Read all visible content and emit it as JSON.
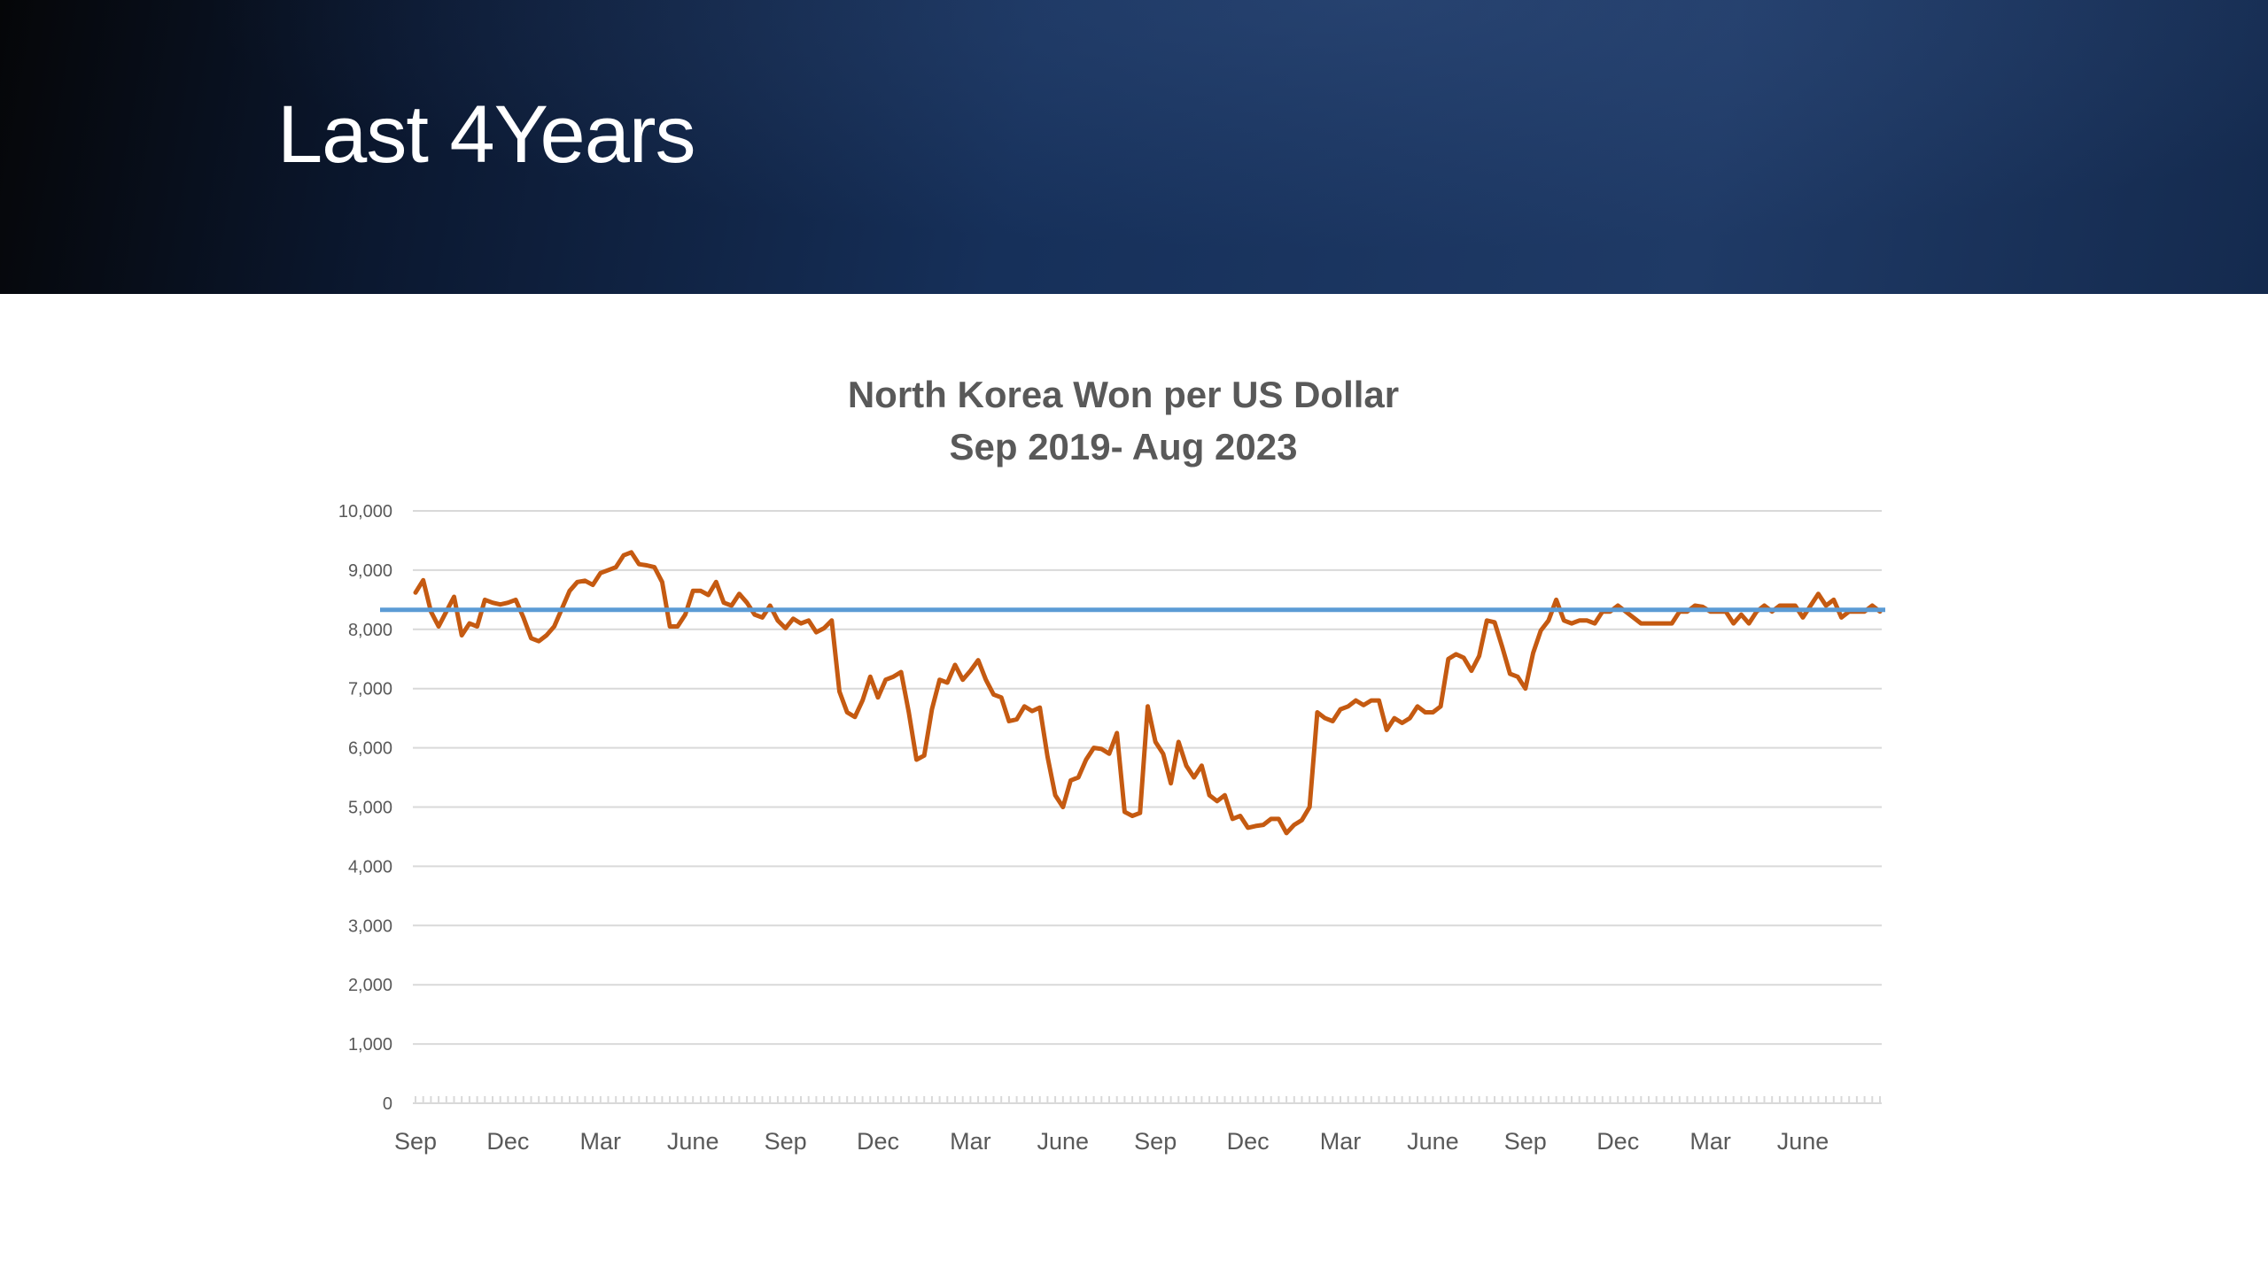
{
  "slide": {
    "title": "Last 4Years"
  },
  "colors": {
    "header_dark": "#050608",
    "header_blue": "#1f3a66",
    "series_line": "#c55a11",
    "reference_line": "#5b9bd5",
    "gridline": "#d9d9d9",
    "text": "#595959"
  },
  "chart_data": {
    "type": "line",
    "title": [
      "North Korea Won per US Dollar",
      "Sep 2019- Aug 2023"
    ],
    "xlabel": "",
    "ylabel": "",
    "ylim": [
      0,
      10000
    ],
    "y_ticks": [
      "0",
      "1,000",
      "2,000",
      "3,000",
      "4,000",
      "5,000",
      "6,000",
      "7,000",
      "8,000",
      "9,000",
      "10,000"
    ],
    "x_range": [
      0,
      48
    ],
    "x_tick_labels": [
      {
        "label": "Sep",
        "month_index": 0
      },
      {
        "label": "Dec",
        "month_index": 3
      },
      {
        "label": "Mar",
        "month_index": 6
      },
      {
        "label": "June",
        "month_index": 9
      },
      {
        "label": "Sep",
        "month_index": 12
      },
      {
        "label": "Dec",
        "month_index": 15
      },
      {
        "label": "Mar",
        "month_index": 18
      },
      {
        "label": "June",
        "month_index": 21
      },
      {
        "label": "Sep",
        "month_index": 24
      },
      {
        "label": "Dec",
        "month_index": 27
      },
      {
        "label": "Mar",
        "month_index": 30
      },
      {
        "label": "June",
        "month_index": 33
      },
      {
        "label": "Sep",
        "month_index": 36
      },
      {
        "label": "Dec",
        "month_index": 39
      },
      {
        "label": "Mar",
        "month_index": 42
      },
      {
        "label": "June",
        "month_index": 45
      }
    ],
    "grid": true,
    "legend": "none",
    "reference_line": {
      "y": 8330
    },
    "series": [
      {
        "points": [
          [
            0.0,
            8620
          ],
          [
            0.25,
            8830
          ],
          [
            0.5,
            8300
          ],
          [
            0.75,
            8050
          ],
          [
            1.0,
            8300
          ],
          [
            1.25,
            8550
          ],
          [
            1.5,
            7900
          ],
          [
            1.75,
            8100
          ],
          [
            2.0,
            8050
          ],
          [
            2.25,
            8500
          ],
          [
            2.5,
            8450
          ],
          [
            2.75,
            8420
          ],
          [
            3.0,
            8450
          ],
          [
            3.25,
            8500
          ],
          [
            3.5,
            8200
          ],
          [
            3.75,
            7850
          ],
          [
            4.0,
            7800
          ],
          [
            4.25,
            7900
          ],
          [
            4.5,
            8050
          ],
          [
            4.75,
            8350
          ],
          [
            5.0,
            8650
          ],
          [
            5.25,
            8800
          ],
          [
            5.5,
            8820
          ],
          [
            5.75,
            8750
          ],
          [
            6.0,
            8950
          ],
          [
            6.25,
            9000
          ],
          [
            6.5,
            9050
          ],
          [
            6.75,
            9250
          ],
          [
            7.0,
            9300
          ],
          [
            7.25,
            9100
          ],
          [
            7.5,
            9080
          ],
          [
            7.75,
            9050
          ],
          [
            8.0,
            8800
          ],
          [
            8.25,
            8050
          ],
          [
            8.5,
            8050
          ],
          [
            8.75,
            8250
          ],
          [
            9.0,
            8650
          ],
          [
            9.25,
            8650
          ],
          [
            9.5,
            8580
          ],
          [
            9.75,
            8800
          ],
          [
            10.0,
            8450
          ],
          [
            10.25,
            8400
          ],
          [
            10.5,
            8600
          ],
          [
            10.75,
            8450
          ],
          [
            11.0,
            8250
          ],
          [
            11.25,
            8200
          ],
          [
            11.5,
            8400
          ],
          [
            11.75,
            8150
          ],
          [
            12.0,
            8020
          ],
          [
            12.25,
            8180
          ],
          [
            12.5,
            8100
          ],
          [
            12.75,
            8150
          ],
          [
            13.0,
            7950
          ],
          [
            13.25,
            8020
          ],
          [
            13.5,
            8150
          ],
          [
            13.75,
            6950
          ],
          [
            14.0,
            6600
          ],
          [
            14.25,
            6520
          ],
          [
            14.5,
            6800
          ],
          [
            14.75,
            7200
          ],
          [
            15.0,
            6850
          ],
          [
            15.25,
            7150
          ],
          [
            15.5,
            7200
          ],
          [
            15.75,
            7280
          ],
          [
            16.0,
            6600
          ],
          [
            16.25,
            5800
          ],
          [
            16.5,
            5870
          ],
          [
            16.75,
            6650
          ],
          [
            17.0,
            7150
          ],
          [
            17.25,
            7100
          ],
          [
            17.5,
            7400
          ],
          [
            17.75,
            7150
          ],
          [
            18.0,
            7300
          ],
          [
            18.25,
            7480
          ],
          [
            18.5,
            7150
          ],
          [
            18.75,
            6900
          ],
          [
            19.0,
            6850
          ],
          [
            19.25,
            6450
          ],
          [
            19.5,
            6480
          ],
          [
            19.75,
            6700
          ],
          [
            20.0,
            6620
          ],
          [
            20.25,
            6680
          ],
          [
            20.5,
            5850
          ],
          [
            20.75,
            5200
          ],
          [
            21.0,
            5000
          ],
          [
            21.25,
            5450
          ],
          [
            21.5,
            5500
          ],
          [
            21.75,
            5800
          ],
          [
            22.0,
            6000
          ],
          [
            22.25,
            5980
          ],
          [
            22.5,
            5900
          ],
          [
            22.75,
            6250
          ],
          [
            23.0,
            4920
          ],
          [
            23.25,
            4850
          ],
          [
            23.5,
            4900
          ],
          [
            23.75,
            6700
          ],
          [
            24.0,
            6100
          ],
          [
            24.25,
            5900
          ],
          [
            24.5,
            5400
          ],
          [
            24.75,
            6100
          ],
          [
            25.0,
            5700
          ],
          [
            25.25,
            5500
          ],
          [
            25.5,
            5700
          ],
          [
            25.75,
            5200
          ],
          [
            26.0,
            5100
          ],
          [
            26.25,
            5200
          ],
          [
            26.5,
            4800
          ],
          [
            26.75,
            4850
          ],
          [
            27.0,
            4650
          ],
          [
            27.25,
            4680
          ],
          [
            27.5,
            4700
          ],
          [
            27.75,
            4800
          ],
          [
            28.0,
            4800
          ],
          [
            28.25,
            4560
          ],
          [
            28.5,
            4700
          ],
          [
            28.75,
            4780
          ],
          [
            29.0,
            5000
          ],
          [
            29.25,
            6600
          ],
          [
            29.5,
            6500
          ],
          [
            29.75,
            6450
          ],
          [
            30.0,
            6650
          ],
          [
            30.25,
            6700
          ],
          [
            30.5,
            6800
          ],
          [
            30.75,
            6720
          ],
          [
            31.0,
            6800
          ],
          [
            31.25,
            6800
          ],
          [
            31.5,
            6300
          ],
          [
            31.75,
            6500
          ],
          [
            32.0,
            6420
          ],
          [
            32.25,
            6500
          ],
          [
            32.5,
            6700
          ],
          [
            32.75,
            6600
          ],
          [
            33.0,
            6600
          ],
          [
            33.25,
            6700
          ],
          [
            33.5,
            7500
          ],
          [
            33.75,
            7580
          ],
          [
            34.0,
            7520
          ],
          [
            34.25,
            7300
          ],
          [
            34.5,
            7550
          ],
          [
            34.75,
            8150
          ],
          [
            35.0,
            8120
          ],
          [
            35.25,
            7700
          ],
          [
            35.5,
            7250
          ],
          [
            35.75,
            7200
          ],
          [
            36.0,
            7000
          ],
          [
            36.25,
            7600
          ],
          [
            36.5,
            7980
          ],
          [
            36.75,
            8150
          ],
          [
            37.0,
            8500
          ],
          [
            37.25,
            8150
          ],
          [
            37.5,
            8100
          ],
          [
            37.75,
            8150
          ],
          [
            38.0,
            8150
          ],
          [
            38.25,
            8100
          ],
          [
            38.5,
            8300
          ],
          [
            38.75,
            8300
          ],
          [
            39.0,
            8400
          ],
          [
            39.25,
            8300
          ],
          [
            39.5,
            8200
          ],
          [
            39.75,
            8100
          ],
          [
            40.0,
            8100
          ],
          [
            40.25,
            8100
          ],
          [
            40.5,
            8100
          ],
          [
            40.75,
            8100
          ],
          [
            41.0,
            8300
          ],
          [
            41.25,
            8300
          ],
          [
            41.5,
            8400
          ],
          [
            41.75,
            8380
          ],
          [
            42.0,
            8300
          ],
          [
            42.25,
            8300
          ],
          [
            42.5,
            8300
          ],
          [
            42.75,
            8100
          ],
          [
            43.0,
            8250
          ],
          [
            43.25,
            8100
          ],
          [
            43.5,
            8300
          ],
          [
            43.75,
            8400
          ],
          [
            44.0,
            8300
          ],
          [
            44.25,
            8400
          ],
          [
            44.5,
            8400
          ],
          [
            44.75,
            8400
          ],
          [
            45.0,
            8200
          ],
          [
            45.25,
            8400
          ],
          [
            45.5,
            8600
          ],
          [
            45.75,
            8400
          ],
          [
            46.0,
            8500
          ],
          [
            46.25,
            8200
          ],
          [
            46.5,
            8300
          ],
          [
            46.75,
            8300
          ],
          [
            47.0,
            8300
          ],
          [
            47.25,
            8400
          ],
          [
            47.5,
            8300
          ]
        ]
      }
    ]
  }
}
